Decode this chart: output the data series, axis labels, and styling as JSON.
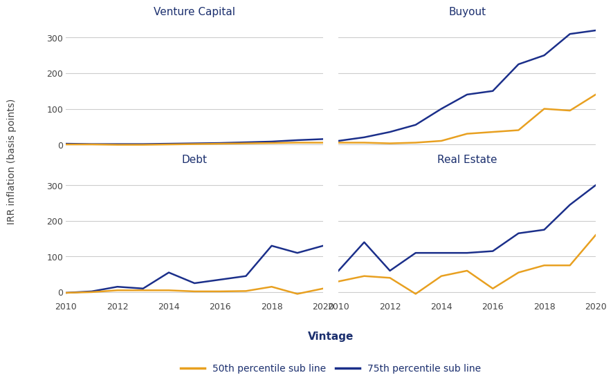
{
  "vintages": [
    2010,
    2011,
    2012,
    2013,
    2014,
    2015,
    2016,
    2017,
    2018,
    2019,
    2020
  ],
  "venture_capital": {
    "p50": [
      0,
      0,
      -1,
      -1,
      0,
      1,
      2,
      3,
      4,
      5,
      5
    ],
    "p75": [
      2,
      1,
      1,
      1,
      2,
      3,
      4,
      6,
      8,
      12,
      15
    ]
  },
  "buyout": {
    "p50": [
      5,
      5,
      3,
      5,
      10,
      30,
      35,
      40,
      100,
      95,
      140
    ],
    "p75": [
      10,
      20,
      35,
      55,
      100,
      140,
      150,
      225,
      250,
      310,
      320
    ]
  },
  "debt": {
    "p50": [
      -2,
      0,
      5,
      5,
      5,
      2,
      2,
      3,
      15,
      -5,
      10
    ],
    "p75": [
      -2,
      2,
      15,
      10,
      55,
      25,
      35,
      45,
      130,
      110,
      130
    ]
  },
  "real_estate": {
    "p50": [
      30,
      45,
      40,
      -5,
      45,
      60,
      10,
      55,
      75,
      75,
      160
    ],
    "p75": [
      60,
      140,
      60,
      110,
      110,
      110,
      115,
      165,
      175,
      245,
      300
    ]
  },
  "colors": {
    "p50": "#E8A020",
    "p75": "#1B2F8A"
  },
  "titles": [
    "Venture Capital",
    "Buyout",
    "Debt",
    "Real Estate"
  ],
  "ylabel": "IRR inflation (basis points)",
  "xlabel": "Vintage",
  "legend_labels": [
    "50th percentile sub line",
    "75th percentile sub line"
  ],
  "ylim": [
    -20,
    350
  ],
  "yticks": [
    0,
    100,
    200,
    300
  ],
  "xticks": [
    2010,
    2012,
    2014,
    2016,
    2018,
    2020
  ],
  "background_color": "#FFFFFF",
  "grid_color": "#CCCCCC",
  "title_color": "#1B2F6E",
  "tick_color": "#444444",
  "ylabel_color": "#444444",
  "xlabel_color": "#1B2F6E"
}
